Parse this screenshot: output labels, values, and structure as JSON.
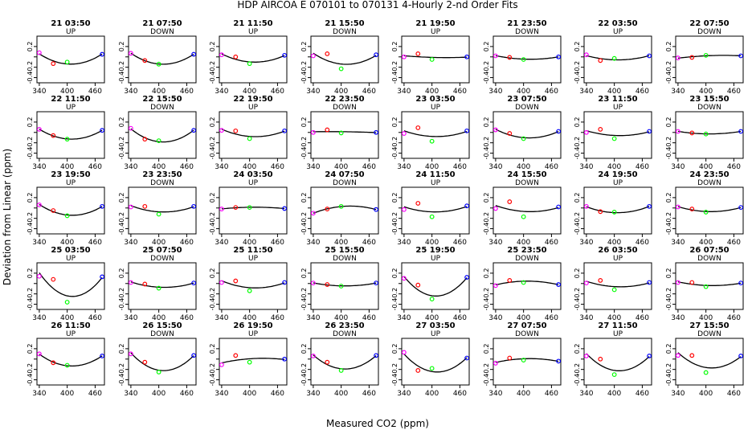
{
  "figure": {
    "title": "HDP    AIRCOA E    070101 to 070131    4-Hourly 2-nd Order Fits",
    "xlabel": "Measured CO2 (ppm)",
    "ylabel": "Deviation from Linear (ppm)"
  },
  "colors": {
    "line": "#000000",
    "low": "#ff00ff",
    "p2": "#ff0000",
    "p3": "#00ff00",
    "high": "#0000ff"
  },
  "chart_data": {
    "type": "scatter",
    "xticks": [
      340,
      400,
      460
    ],
    "yticks": [
      0.2,
      0.0,
      -0.2,
      -0.4
    ],
    "ytick_labels": [
      "0.2",
      "",
      "-0.2",
      "-0.4"
    ],
    "xlim": [
      335,
      480
    ],
    "ylim": [
      -0.5,
      0.4
    ],
    "series_points_x": [
      340,
      370,
      400,
      475
    ],
    "panels": [
      {
        "title": "21 03:50",
        "dir": "UP",
        "y": [
          0.08,
          -0.13,
          -0.1,
          0.05
        ]
      },
      {
        "title": "21 07:50",
        "dir": "DOWN",
        "y": [
          0.07,
          -0.07,
          -0.14,
          0.05
        ]
      },
      {
        "title": "21 11:50",
        "dir": "UP",
        "y": [
          0.04,
          0.0,
          -0.13,
          0.03
        ]
      },
      {
        "title": "21 15:50",
        "dir": "DOWN",
        "y": [
          0.02,
          0.06,
          -0.23,
          0.04
        ]
      },
      {
        "title": "21 19:50",
        "dir": "UP",
        "y": [
          0.0,
          0.06,
          -0.05,
          0.0
        ]
      },
      {
        "title": "21 23:50",
        "dir": "DOWN",
        "y": [
          0.02,
          -0.01,
          -0.05,
          0.0
        ]
      },
      {
        "title": "22 03:50",
        "dir": "UP",
        "y": [
          0.04,
          -0.07,
          -0.03,
          0.02
        ]
      },
      {
        "title": "22 07:50",
        "dir": "DOWN",
        "y": [
          -0.02,
          -0.01,
          0.03,
          0.02
        ]
      },
      {
        "title": "22 11:50",
        "dir": "UP",
        "y": [
          0.06,
          -0.06,
          -0.13,
          0.04
        ]
      },
      {
        "title": "22 15:50",
        "dir": "DOWN",
        "y": [
          0.08,
          -0.13,
          -0.16,
          0.04
        ]
      },
      {
        "title": "22 19:50",
        "dir": "UP",
        "y": [
          0.04,
          0.03,
          -0.12,
          0.03
        ]
      },
      {
        "title": "22 23:50",
        "dir": "DOWN",
        "y": [
          0.0,
          0.05,
          -0.01,
          0.0
        ]
      },
      {
        "title": "23 03:50",
        "dir": "UP",
        "y": [
          -0.02,
          0.09,
          -0.17,
          0.03
        ]
      },
      {
        "title": "23 07:50",
        "dir": "DOWN",
        "y": [
          0.05,
          -0.02,
          -0.12,
          0.02
        ]
      },
      {
        "title": "23 11:50",
        "dir": "UP",
        "y": [
          0.0,
          0.06,
          -0.12,
          0.02
        ]
      },
      {
        "title": "23 15:50",
        "dir": "DOWN",
        "y": [
          0.02,
          -0.01,
          -0.03,
          0.02
        ]
      },
      {
        "title": "23 19:50",
        "dir": "UP",
        "y": [
          0.06,
          -0.05,
          -0.15,
          0.03
        ]
      },
      {
        "title": "23 23:50",
        "dir": "DOWN",
        "y": [
          0.02,
          0.03,
          -0.12,
          0.03
        ]
      },
      {
        "title": "24 03:50",
        "dir": "UP",
        "y": [
          -0.02,
          0.01,
          0.01,
          -0.01
        ]
      },
      {
        "title": "24 07:50",
        "dir": "DOWN",
        "y": [
          -0.1,
          -0.02,
          0.03,
          -0.03
        ]
      },
      {
        "title": "24 11:50",
        "dir": "UP",
        "y": [
          -0.03,
          0.09,
          -0.17,
          0.04
        ]
      },
      {
        "title": "24 15:50",
        "dir": "DOWN",
        "y": [
          -0.01,
          0.12,
          -0.17,
          0.02
        ]
      },
      {
        "title": "24 19:50",
        "dir": "UP",
        "y": [
          0.03,
          -0.07,
          -0.08,
          0.03
        ]
      },
      {
        "title": "24 23:50",
        "dir": "DOWN",
        "y": [
          0.02,
          -0.02,
          -0.08,
          0.01
        ]
      },
      {
        "title": "25 03:50",
        "dir": "UP",
        "y": [
          0.14,
          0.08,
          -0.36,
          0.13
        ]
      },
      {
        "title": "25 07:50",
        "dir": "DOWN",
        "y": [
          0.02,
          -0.01,
          -0.09,
          0.01
        ]
      },
      {
        "title": "25 11:50",
        "dir": "UP",
        "y": [
          0.02,
          0.05,
          -0.14,
          0.02
        ]
      },
      {
        "title": "25 15:50",
        "dir": "DOWN",
        "y": [
          0.01,
          -0.02,
          -0.05,
          0.01
        ]
      },
      {
        "title": "25 19:50",
        "dir": "UP",
        "y": [
          0.1,
          -0.03,
          -0.3,
          0.12
        ]
      },
      {
        "title": "25 23:50",
        "dir": "DOWN",
        "y": [
          -0.04,
          0.06,
          0.02,
          -0.02
        ]
      },
      {
        "title": "26 03:50",
        "dir": "UP",
        "y": [
          0.01,
          0.06,
          -0.12,
          0.02
        ]
      },
      {
        "title": "26 07:50",
        "dir": "DOWN",
        "y": [
          0.02,
          0.02,
          -0.06,
          0.01
        ]
      },
      {
        "title": "26 11:50",
        "dir": "UP",
        "y": [
          0.1,
          -0.07,
          -0.12,
          0.06
        ]
      },
      {
        "title": "26 15:50",
        "dir": "DOWN",
        "y": [
          0.1,
          -0.06,
          -0.25,
          0.07
        ]
      },
      {
        "title": "26 19:50",
        "dir": "UP",
        "y": [
          -0.11,
          0.07,
          -0.06,
          0.0
        ]
      },
      {
        "title": "26 23:50",
        "dir": "DOWN",
        "y": [
          0.06,
          -0.06,
          -0.22,
          0.07
        ]
      },
      {
        "title": "27 03:50",
        "dir": "UP",
        "y": [
          0.13,
          -0.22,
          -0.18,
          0.02
        ]
      },
      {
        "title": "27 07:50",
        "dir": "DOWN",
        "y": [
          -0.08,
          0.02,
          -0.02,
          -0.04
        ]
      },
      {
        "title": "27 11:50",
        "dir": "UP",
        "y": [
          0.06,
          0.0,
          -0.3,
          0.06
        ]
      },
      {
        "title": "27 15:50",
        "dir": "DOWN",
        "y": [
          0.07,
          0.07,
          -0.26,
          0.06
        ]
      }
    ]
  }
}
